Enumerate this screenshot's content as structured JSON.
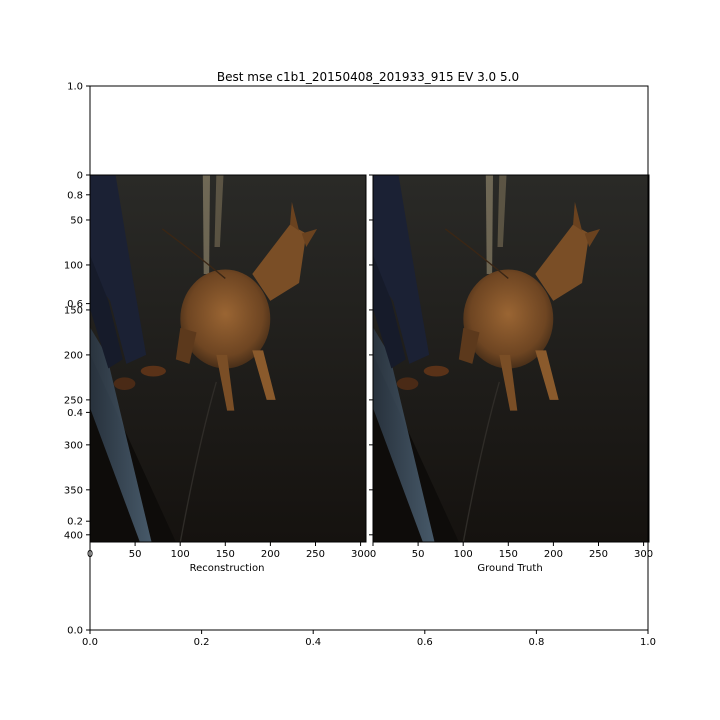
{
  "chart_data": {
    "type": "image",
    "title": "Best mse c1b1_20150408_201933_915 EV 3.0 5.0",
    "outer_axes": {
      "xlim": [
        0.0,
        1.0
      ],
      "ylim": [
        0.0,
        1.0
      ],
      "x_ticks": [
        "0.0",
        "0.2",
        "0.4",
        "0.6",
        "0.8",
        "1.0"
      ],
      "y_ticks": [
        "0.0",
        "0.2",
        "0.4",
        "0.6",
        "0.8",
        "1.0"
      ]
    },
    "panels": [
      {
        "xlabel": "Reconstruction",
        "x_ticks": [
          "0",
          "50",
          "100",
          "150",
          "200",
          "250",
          "300"
        ],
        "y_ticks": [
          "0",
          "50",
          "100",
          "150",
          "200",
          "250",
          "300",
          "350",
          "400"
        ],
        "xlim": [
          0,
          306
        ],
        "ylim": [
          408,
          0
        ]
      },
      {
        "xlabel": "Ground Truth",
        "x_ticks": [
          "0",
          "50",
          "100",
          "150",
          "200",
          "250",
          "300"
        ],
        "y_ticks": [],
        "xlim": [
          0,
          306
        ],
        "ylim": [
          408,
          0
        ]
      }
    ]
  },
  "colors": {
    "background": "#ffffff",
    "ground": "#1c1a17",
    "dog": "#8a5a2c",
    "pants": "#1b2134",
    "curb": "#3b4c5c"
  }
}
